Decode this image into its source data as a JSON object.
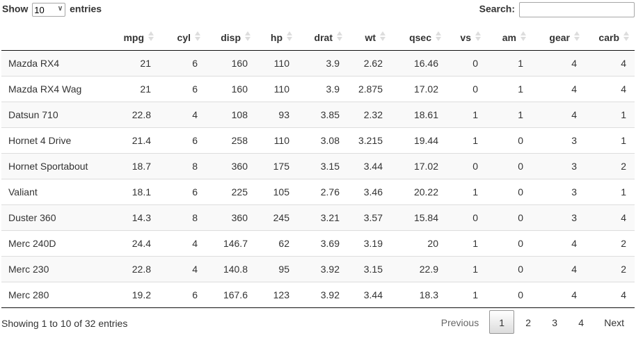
{
  "length": {
    "show_label": "Show",
    "selected": "10",
    "entries_label": "entries",
    "caret": "∨"
  },
  "search": {
    "label": "Search:",
    "value": ""
  },
  "columns": [
    "",
    "mpg",
    "cyl",
    "disp",
    "hp",
    "drat",
    "wt",
    "qsec",
    "vs",
    "am",
    "gear",
    "carb"
  ],
  "rows": [
    [
      "Mazda RX4",
      "21",
      "6",
      "160",
      "110",
      "3.9",
      "2.62",
      "16.46",
      "0",
      "1",
      "4",
      "4"
    ],
    [
      "Mazda RX4 Wag",
      "21",
      "6",
      "160",
      "110",
      "3.9",
      "2.875",
      "17.02",
      "0",
      "1",
      "4",
      "4"
    ],
    [
      "Datsun 710",
      "22.8",
      "4",
      "108",
      "93",
      "3.85",
      "2.32",
      "18.61",
      "1",
      "1",
      "4",
      "1"
    ],
    [
      "Hornet 4 Drive",
      "21.4",
      "6",
      "258",
      "110",
      "3.08",
      "3.215",
      "19.44",
      "1",
      "0",
      "3",
      "1"
    ],
    [
      "Hornet Sportabout",
      "18.7",
      "8",
      "360",
      "175",
      "3.15",
      "3.44",
      "17.02",
      "0",
      "0",
      "3",
      "2"
    ],
    [
      "Valiant",
      "18.1",
      "6",
      "225",
      "105",
      "2.76",
      "3.46",
      "20.22",
      "1",
      "0",
      "3",
      "1"
    ],
    [
      "Duster 360",
      "14.3",
      "8",
      "360",
      "245",
      "3.21",
      "3.57",
      "15.84",
      "0",
      "0",
      "3",
      "4"
    ],
    [
      "Merc 240D",
      "24.4",
      "4",
      "146.7",
      "62",
      "3.69",
      "3.19",
      "20",
      "1",
      "0",
      "4",
      "2"
    ],
    [
      "Merc 230",
      "22.8",
      "4",
      "140.8",
      "95",
      "3.92",
      "3.15",
      "22.9",
      "1",
      "0",
      "4",
      "2"
    ],
    [
      "Merc 280",
      "19.2",
      "6",
      "167.6",
      "123",
      "3.92",
      "3.44",
      "18.3",
      "1",
      "0",
      "4",
      "4"
    ]
  ],
  "info": "Showing 1 to 10 of 32 entries",
  "pagination": {
    "previous": "Previous",
    "pages": [
      "1",
      "2",
      "3",
      "4"
    ],
    "current": "1",
    "next": "Next"
  }
}
